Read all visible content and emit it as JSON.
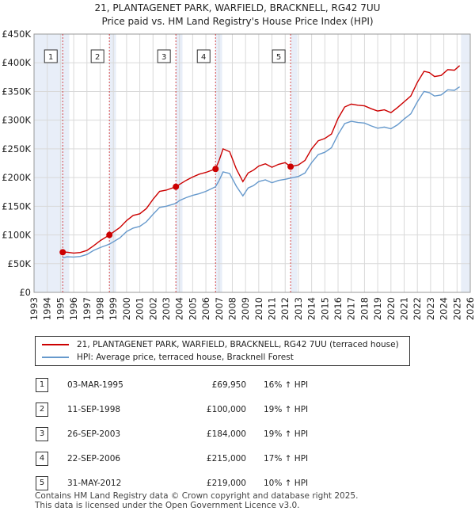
{
  "title_line1": "21, PLANTAGENET PARK, WARFIELD, BRACKNELL, RG42 7UU",
  "title_line2": "Price paid vs. HM Land Registry's House Price Index (HPI)",
  "colors": {
    "price": "#cc0000",
    "hpi": "#6699cc",
    "shade": "#e8eef8",
    "grid": "#d9d9d9",
    "vline": "#cc0000"
  },
  "chart_data": {
    "type": "line",
    "xlim": [
      1993,
      2026
    ],
    "ylim": [
      0,
      450000
    ],
    "x_ticks": [
      1993,
      1994,
      1995,
      1996,
      1997,
      1998,
      1999,
      2000,
      2001,
      2002,
      2003,
      2004,
      2005,
      2006,
      2007,
      2008,
      2009,
      2010,
      2011,
      2012,
      2013,
      2014,
      2015,
      2016,
      2017,
      2018,
      2019,
      2020,
      2021,
      2022,
      2023,
      2024,
      2025,
      2026
    ],
    "y_ticks": [
      {
        "value": 0,
        "label": "£0"
      },
      {
        "value": 50000,
        "label": "£50K"
      },
      {
        "value": 100000,
        "label": "£100K"
      },
      {
        "value": 150000,
        "label": "£150K"
      },
      {
        "value": 200000,
        "label": "£200K"
      },
      {
        "value": 250000,
        "label": "£250K"
      },
      {
        "value": 300000,
        "label": "£300K"
      },
      {
        "value": 350000,
        "label": "£350K"
      },
      {
        "value": 400000,
        "label": "£400K"
      },
      {
        "value": 450000,
        "label": "£450K"
      }
    ],
    "shaded_ranges": [
      [
        1993,
        1995.17
      ],
      [
        2025.3,
        2026
      ]
    ],
    "series": [
      {
        "name": "21, PLANTAGENET PARK, WARFIELD, BRACKNELL, RG42 7UU (terraced house)",
        "x": [
          1995.17,
          1995.5,
          1996,
          1996.5,
          1997,
          1997.5,
          1998,
          1998.7,
          1999,
          1999.5,
          2000,
          2000.5,
          2001,
          2001.5,
          2002,
          2002.5,
          2003,
          2003.73,
          2004,
          2004.5,
          2005,
          2005.5,
          2006,
          2006.73,
          2007,
          2007.3,
          2007.8,
          2008.3,
          2008.8,
          2009.2,
          2009.6,
          2010,
          2010.5,
          2011,
          2011.5,
          2012,
          2012.41,
          2013,
          2013.5,
          2014,
          2014.5,
          2015,
          2015.5,
          2016,
          2016.5,
          2017,
          2017.5,
          2018,
          2018.5,
          2019,
          2019.5,
          2020,
          2020.5,
          2021,
          2021.5,
          2022,
          2022.5,
          2022.9,
          2023.3,
          2023.8,
          2024.3,
          2024.8,
          2025.2
        ],
        "values": [
          69950,
          70000,
          68500,
          69500,
          73000,
          81000,
          90000,
          100000,
          105000,
          113000,
          125000,
          134000,
          137000,
          146000,
          162000,
          176000,
          178000,
          184000,
          188000,
          195000,
          201000,
          206000,
          209000,
          215000,
          230000,
          250000,
          245000,
          215000,
          193000,
          208000,
          213000,
          220000,
          224000,
          218000,
          223000,
          226000,
          219000,
          222000,
          230000,
          250000,
          264000,
          268000,
          276000,
          303000,
          323000,
          328000,
          326000,
          325000,
          320000,
          316000,
          318000,
          313000,
          322000,
          332000,
          342000,
          366000,
          385000,
          383000,
          376000,
          378000,
          388000,
          387000,
          395000
        ]
      },
      {
        "name": "HPI: Average price, terraced house, Bracknell Forest",
        "x": [
          1995.17,
          1995.5,
          1996,
          1996.5,
          1997,
          1997.5,
          1998,
          1998.7,
          1999,
          1999.5,
          2000,
          2000.5,
          2001,
          2001.5,
          2002,
          2002.5,
          2003,
          2003.73,
          2004,
          2004.5,
          2005,
          2005.5,
          2006,
          2006.73,
          2007,
          2007.3,
          2007.8,
          2008.3,
          2008.8,
          2009.2,
          2009.6,
          2010,
          2010.5,
          2011,
          2011.5,
          2012,
          2012.41,
          2013,
          2013.5,
          2014,
          2014.5,
          2015,
          2015.5,
          2016,
          2016.5,
          2017,
          2017.5,
          2018,
          2018.5,
          2019,
          2019.5,
          2020,
          2020.5,
          2021,
          2021.5,
          2022,
          2022.5,
          2022.9,
          2023.3,
          2023.8,
          2024.3,
          2024.8,
          2025.2
        ],
        "values": [
          60000,
          62000,
          61500,
          62500,
          66000,
          73000,
          78000,
          84000,
          88000,
          95000,
          106000,
          112000,
          115000,
          123000,
          136000,
          148000,
          150000,
          155000,
          160000,
          165000,
          169000,
          172000,
          176000,
          184000,
          195000,
          210000,
          207000,
          185000,
          168000,
          182000,
          186000,
          193000,
          196000,
          191000,
          195000,
          197000,
          199000,
          202000,
          208000,
          226000,
          240000,
          244000,
          252000,
          275000,
          294000,
          298000,
          296000,
          295000,
          290000,
          286000,
          288000,
          285000,
          292000,
          302000,
          311000,
          332000,
          350000,
          348000,
          342000,
          344000,
          353000,
          352000,
          358000
        ]
      }
    ],
    "sale_points": [
      {
        "label": "1",
        "x": 1995.17,
        "value": 69950
      },
      {
        "label": "2",
        "x": 1998.7,
        "value": 100000
      },
      {
        "label": "3",
        "x": 2003.73,
        "value": 184000
      },
      {
        "label": "4",
        "x": 2006.73,
        "value": 215000
      },
      {
        "label": "5",
        "x": 2012.41,
        "value": 219000
      }
    ]
  },
  "legend": {
    "price_label": "21, PLANTAGENET PARK, WARFIELD, BRACKNELL, RG42 7UU (terraced house)",
    "hpi_label": "HPI: Average price, terraced house, Bracknell Forest"
  },
  "sales": [
    {
      "index": "1",
      "date": "03-MAR-1995",
      "price": "£69,950",
      "hpi": "16% ↑ HPI"
    },
    {
      "index": "2",
      "date": "11-SEP-1998",
      "price": "£100,000",
      "hpi": "19% ↑ HPI"
    },
    {
      "index": "3",
      "date": "26-SEP-2003",
      "price": "£184,000",
      "hpi": "19% ↑ HPI"
    },
    {
      "index": "4",
      "date": "22-SEP-2006",
      "price": "£215,000",
      "hpi": "17% ↑ HPI"
    },
    {
      "index": "5",
      "date": "31-MAY-2012",
      "price": "£219,000",
      "hpi": "10% ↑ HPI"
    }
  ],
  "footer": {
    "line1": "Contains HM Land Registry data © Crown copyright and database right 2025.",
    "line2": "This data is licensed under the Open Government Licence v3.0."
  }
}
